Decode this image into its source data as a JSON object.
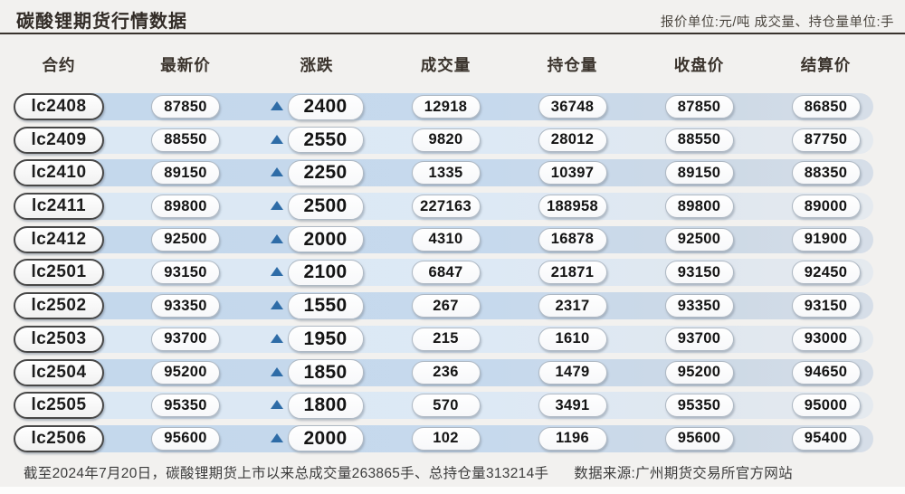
{
  "page": {
    "title": "碳酸锂期货行情数据",
    "units_note": "报价单位:元/吨 成交量、持仓量单位:手"
  },
  "icons": {
    "change_up_triangle": "▲"
  },
  "colors": {
    "page_bg": "#f2f1ef",
    "rule_dark": "#39332d",
    "row_odd_blue": "#c6d9ed",
    "row_even_blue": "#dde9f5",
    "triangle_blue": "#2e6ca7",
    "pill_border": "#aeb8c3",
    "contract_border": "#474747"
  },
  "chart_data": {
    "type": "table",
    "title": "碳酸锂期货行情数据",
    "unit_note": "报价单位:元/吨 成交量、持仓量单位:手",
    "columns": [
      "合约",
      "最新价",
      "涨跌",
      "成交量",
      "持仓量",
      "收盘价",
      "结算价"
    ],
    "change_direction_all_rows": "up",
    "rows": [
      {
        "contract": "lc2408",
        "last": "87850",
        "change": "2400",
        "change_direction": "up",
        "volume": "12918",
        "open_interest": "36748",
        "close": "87850",
        "settle": "86850"
      },
      {
        "contract": "lc2409",
        "last": "88550",
        "change": "2550",
        "change_direction": "up",
        "volume": "9820",
        "open_interest": "28012",
        "close": "88550",
        "settle": "87750"
      },
      {
        "contract": "lc2410",
        "last": "89150",
        "change": "2250",
        "change_direction": "up",
        "volume": "1335",
        "open_interest": "10397",
        "close": "89150",
        "settle": "88350"
      },
      {
        "contract": "lc2411",
        "last": "89800",
        "change": "2500",
        "change_direction": "up",
        "volume": "227163",
        "open_interest": "188958",
        "close": "89800",
        "settle": "89000"
      },
      {
        "contract": "lc2412",
        "last": "92500",
        "change": "2000",
        "change_direction": "up",
        "volume": "4310",
        "open_interest": "16878",
        "close": "92500",
        "settle": "91900"
      },
      {
        "contract": "lc2501",
        "last": "93150",
        "change": "2100",
        "change_direction": "up",
        "volume": "6847",
        "open_interest": "21871",
        "close": "93150",
        "settle": "92450"
      },
      {
        "contract": "lc2502",
        "last": "93350",
        "change": "1550",
        "change_direction": "up",
        "volume": "267",
        "open_interest": "2317",
        "close": "93350",
        "settle": "93150"
      },
      {
        "contract": "lc2503",
        "last": "93700",
        "change": "1950",
        "change_direction": "up",
        "volume": "215",
        "open_interest": "1610",
        "close": "93700",
        "settle": "93000"
      },
      {
        "contract": "lc2504",
        "last": "95200",
        "change": "1850",
        "change_direction": "up",
        "volume": "236",
        "open_interest": "1479",
        "close": "95200",
        "settle": "94650"
      },
      {
        "contract": "lc2505",
        "last": "95350",
        "change": "1800",
        "change_direction": "up",
        "volume": "570",
        "open_interest": "3491",
        "close": "95350",
        "settle": "95000"
      },
      {
        "contract": "lc2506",
        "last": "95600",
        "change": "2000",
        "change_direction": "up",
        "volume": "102",
        "open_interest": "1196",
        "close": "95600",
        "settle": "95400"
      }
    ]
  },
  "footer": {
    "summary": "截至2024年7月20日，碳酸锂期货上市以来总成交量263865手、总持仓量313214手",
    "source": "数据来源:广州期货交易所官方网站"
  }
}
